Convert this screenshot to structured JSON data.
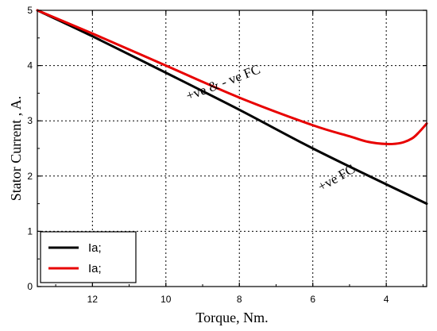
{
  "chart_data": {
    "type": "line",
    "xlabel": "Torque, Nm.",
    "ylabel": "Stator Current , A.",
    "xlim": [
      13.5,
      2.9
    ],
    "ylim": [
      0,
      5
    ],
    "x_reversed": true,
    "xticks": [
      12,
      10,
      8,
      6,
      4
    ],
    "yticks": [
      0,
      1,
      2,
      3,
      4,
      5
    ],
    "grid": true,
    "legend_position": "bottom-left",
    "series": [
      {
        "name": "Ia;",
        "color": "#000000",
        "x": [
          13.5,
          12,
          10,
          8,
          6,
          4,
          2.9
        ],
        "y": [
          5.0,
          4.53,
          3.87,
          3.2,
          2.5,
          1.85,
          1.5
        ]
      },
      {
        "name": "Ia;",
        "color": "#e80000",
        "x": [
          13.5,
          12,
          10,
          8,
          6,
          5,
          4.5,
          4.0,
          3.6,
          3.3,
          3.1,
          2.9
        ],
        "y": [
          5.0,
          4.58,
          4.0,
          3.42,
          2.92,
          2.72,
          2.62,
          2.58,
          2.6,
          2.68,
          2.8,
          2.95
        ]
      }
    ],
    "annotations": [
      {
        "text": "+ve & - ve FC",
        "x": 8.4,
        "y": 3.62,
        "rotation": -21
      },
      {
        "text": "+ve FC",
        "x": 5.3,
        "y": 1.9,
        "rotation": -30
      }
    ]
  }
}
